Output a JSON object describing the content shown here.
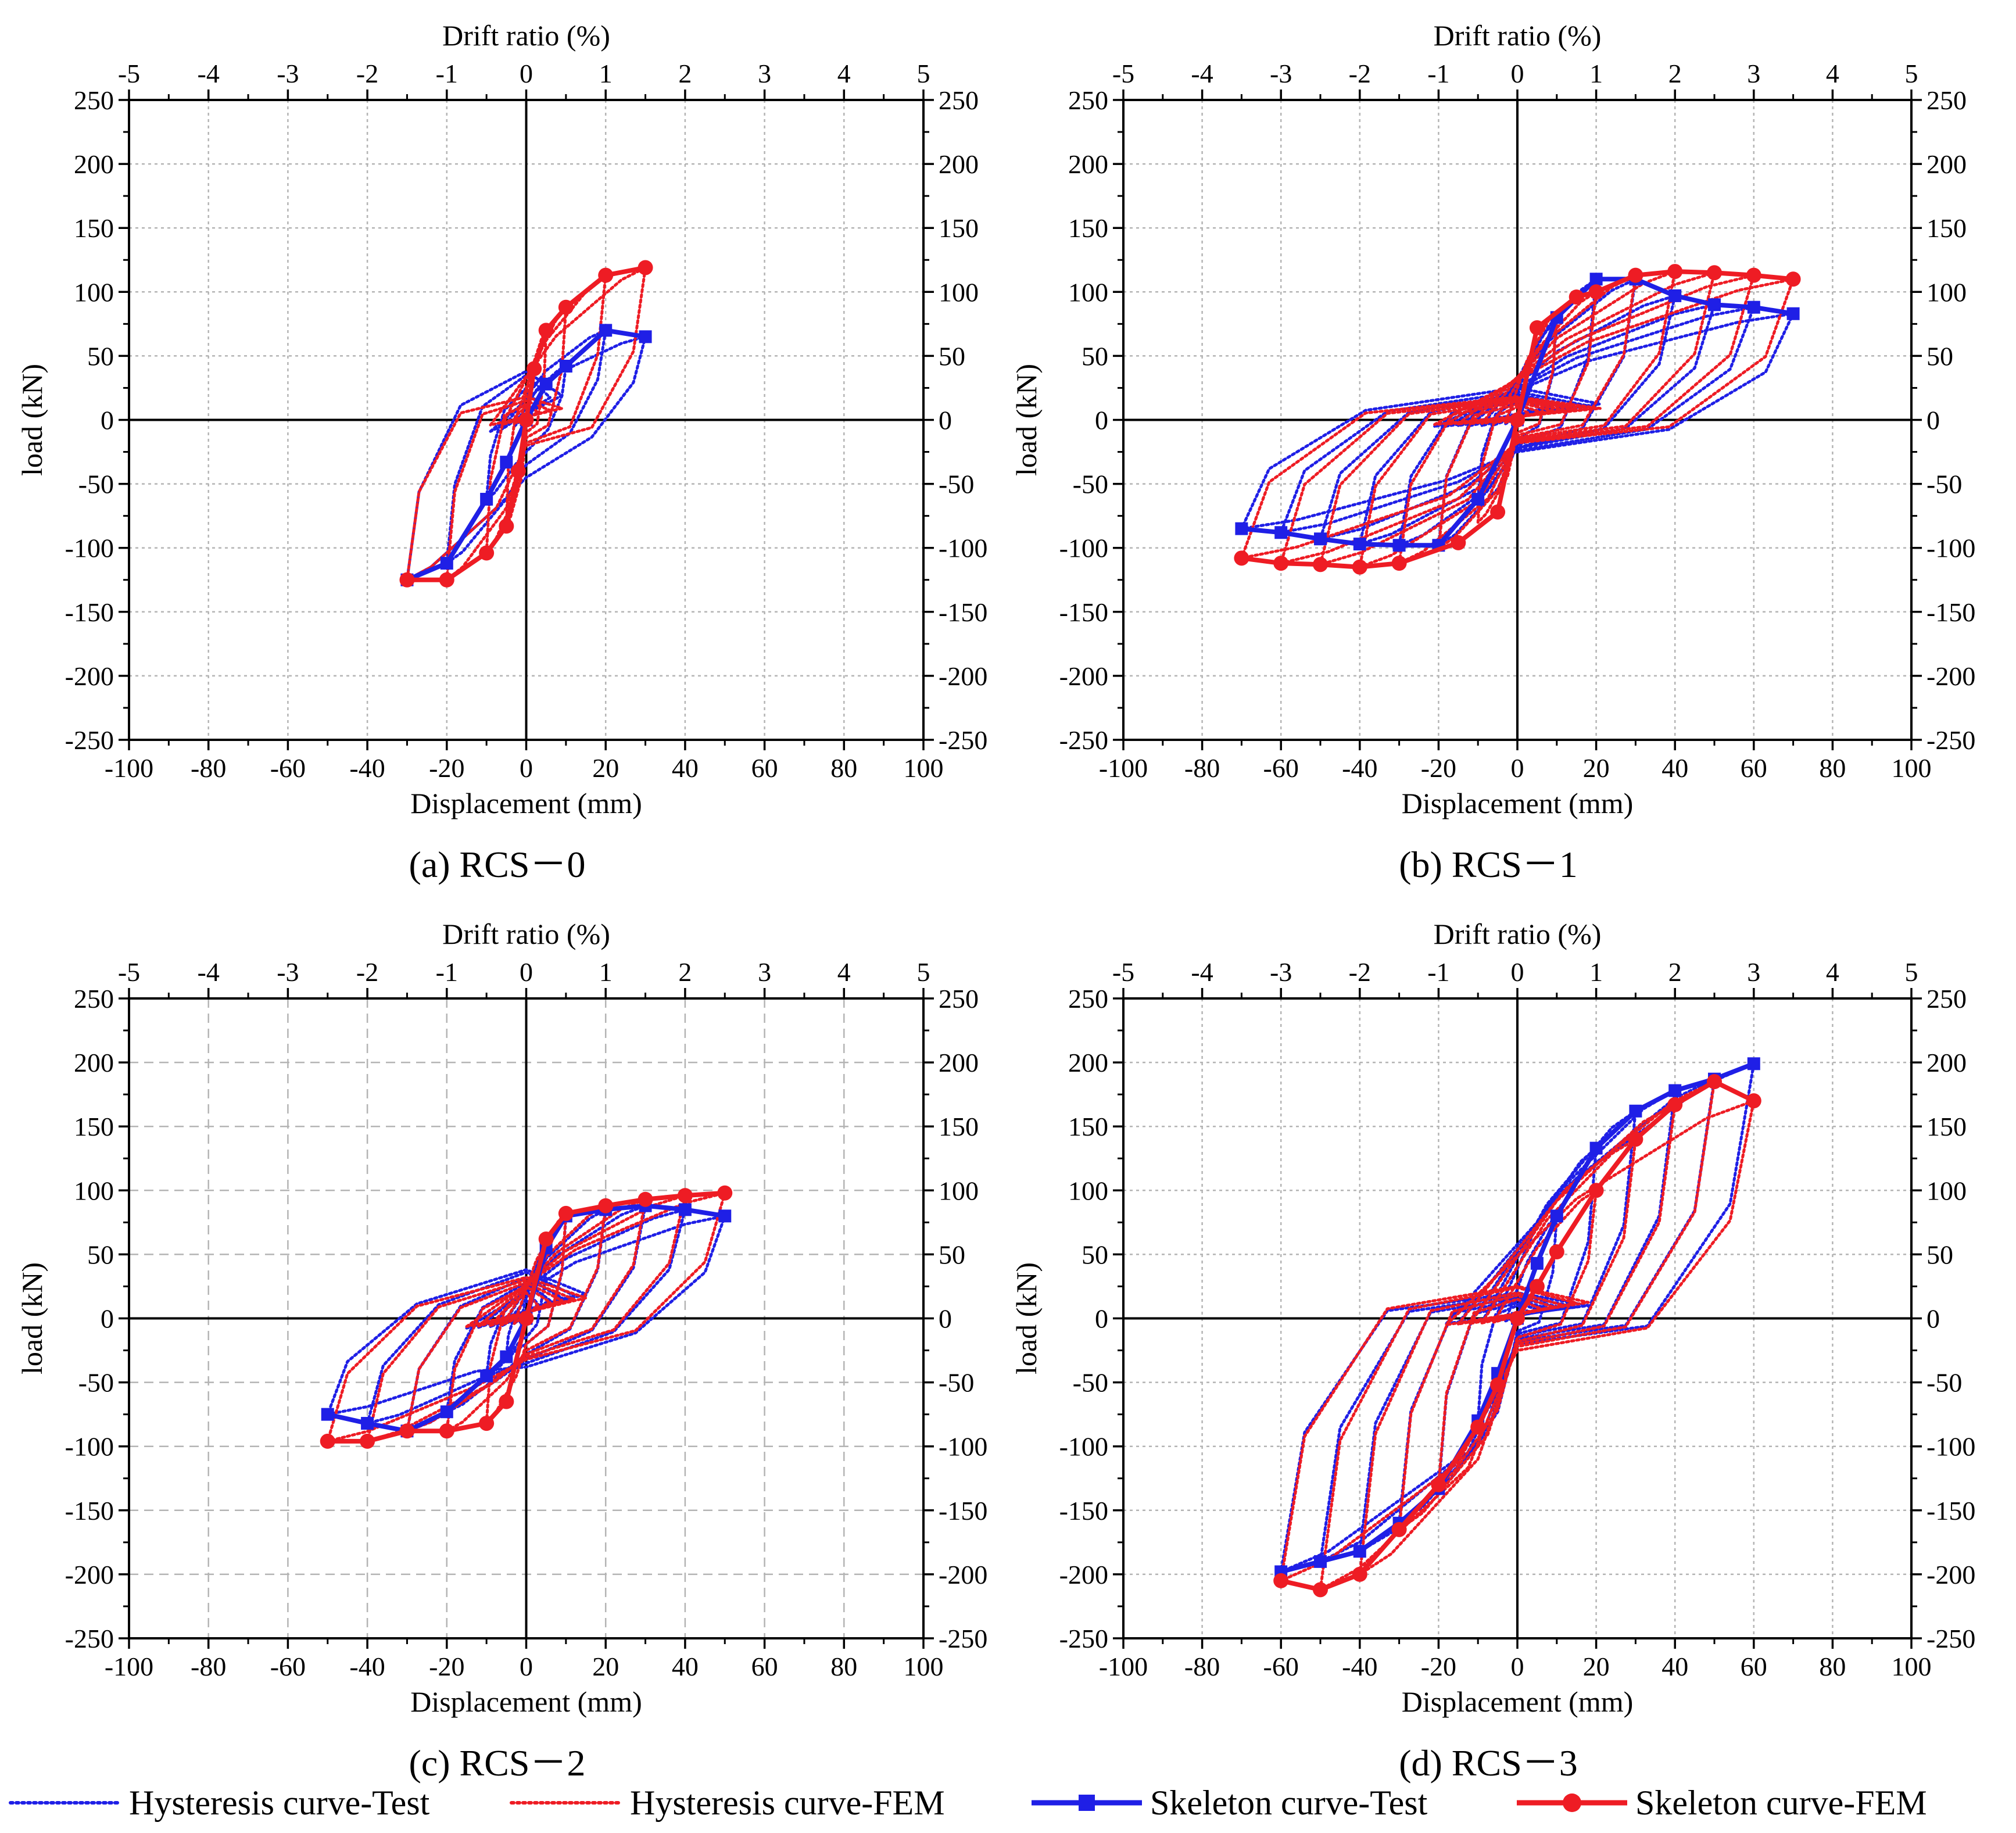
{
  "colors": {
    "test": "#1f1fe6",
    "fem": "#ee1c24",
    "grid": "#b4b4b4",
    "axis": "#000000"
  },
  "legend": [
    {
      "label": "Hysteresis curve-Test",
      "color": "#1f1fe6",
      "style": "dotted",
      "marker": "none"
    },
    {
      "label": "Hysteresis curve-FEM",
      "color": "#ee1c24",
      "style": "dotted",
      "marker": "none"
    },
    {
      "label": "Skeleton curve-Test",
      "color": "#1f1fe6",
      "style": "solid",
      "marker": "square"
    },
    {
      "label": "Skeleton curve-FEM",
      "color": "#ee1c24",
      "style": "solid",
      "marker": "circle"
    }
  ],
  "chart_data": [
    {
      "type": "line",
      "caption": "(a) RCS－0",
      "xlabel": "Displacement (mm)",
      "ylabel": "load (kN)",
      "x2label": "Drift ratio (%)",
      "xlim": [
        -100,
        100
      ],
      "ylim": [
        -250,
        250
      ],
      "x2lim": [
        -5,
        5
      ],
      "xticks": [
        -100,
        -80,
        -60,
        -40,
        -20,
        0,
        20,
        40,
        60,
        80,
        100
      ],
      "yticks": [
        -250,
        -200,
        -150,
        -100,
        -50,
        0,
        50,
        100,
        150,
        200,
        250
      ],
      "x2ticks": [
        -5,
        -4,
        -3,
        -2,
        -1,
        0,
        1,
        2,
        3,
        4,
        5
      ],
      "grid": true,
      "grid_style": "dotted",
      "series": [
        {
          "name": "Skeleton curve-Test",
          "x": [
            -30,
            -20,
            -10,
            -5,
            0,
            5,
            10,
            20,
            30
          ],
          "y": [
            -125,
            -112,
            -62,
            -33,
            0,
            28,
            42,
            70,
            65
          ]
        },
        {
          "name": "Skeleton curve-FEM",
          "x": [
            -30,
            -20,
            -10,
            -5,
            -2,
            0,
            2,
            5,
            10,
            20,
            30
          ],
          "y": [
            -125,
            -125,
            -104,
            -83,
            -40,
            0,
            40,
            70,
            88,
            113,
            119
          ]
        },
        {
          "name": "Hysteresis curve-Test",
          "loops": [
            {
              "amp": 10,
              "pos": 42,
              "neg": -62,
              "rpos": 25,
              "rneg": -25
            },
            {
              "amp": 20,
              "pos": 70,
              "neg": -112,
              "rpos": 35,
              "rneg": -35
            },
            {
              "amp": 30,
              "pos": 65,
              "neg": -125,
              "rpos": 38,
              "rneg": -45
            }
          ]
        },
        {
          "name": "Hysteresis curve-FEM",
          "loops": [
            {
              "amp": 5,
              "pos": 70,
              "neg": -83,
              "rpos": 10,
              "rneg": -10
            },
            {
              "amp": 10,
              "pos": 88,
              "neg": -104,
              "rpos": 12,
              "rneg": -14
            },
            {
              "amp": 20,
              "pos": 113,
              "neg": -125,
              "rpos": 15,
              "rneg": -18
            },
            {
              "amp": 30,
              "pos": 119,
              "neg": -125,
              "rpos": 18,
              "rneg": -20
            }
          ]
        }
      ]
    },
    {
      "type": "line",
      "caption": "(b) RCS－1",
      "xlabel": "Displacement (mm)",
      "ylabel": "load (kN)",
      "x2label": "Drift ratio (%)",
      "xlim": [
        -100,
        100
      ],
      "ylim": [
        -250,
        250
      ],
      "x2lim": [
        -5,
        5
      ],
      "xticks": [
        -100,
        -80,
        -60,
        -40,
        -20,
        0,
        20,
        40,
        60,
        80,
        100
      ],
      "yticks": [
        -250,
        -200,
        -150,
        -100,
        -50,
        0,
        50,
        100,
        150,
        200,
        250
      ],
      "x2ticks": [
        -5,
        -4,
        -3,
        -2,
        -1,
        0,
        1,
        2,
        3,
        4,
        5
      ],
      "grid": true,
      "grid_style": "dotted",
      "series": [
        {
          "name": "Skeleton curve-Test",
          "x": [
            -70,
            -60,
            -50,
            -40,
            -30,
            -20,
            -10,
            0,
            10,
            20,
            30,
            40,
            50,
            60,
            70
          ],
          "y": [
            -85,
            -88,
            -93,
            -97,
            -98,
            -98,
            -62,
            0,
            80,
            110,
            110,
            97,
            90,
            88,
            83
          ]
        },
        {
          "name": "Skeleton curve-FEM",
          "x": [
            -70,
            -60,
            -50,
            -40,
            -30,
            -15,
            -5,
            0,
            5,
            15,
            20,
            30,
            40,
            50,
            60,
            70
          ],
          "y": [
            -108,
            -112,
            -113,
            -115,
            -112,
            -96,
            -72,
            0,
            72,
            96,
            100,
            113,
            116,
            115,
            113,
            110
          ]
        },
        {
          "name": "Hysteresis curve-Test",
          "loops": [
            {
              "amp": 10,
              "pos": 80,
              "neg": -62,
              "rpos": 15,
              "rneg": -15
            },
            {
              "amp": 20,
              "pos": 110,
              "neg": -98,
              "rpos": 18,
              "rneg": -20
            },
            {
              "amp": 30,
              "pos": 110,
              "neg": -98,
              "rpos": 20,
              "rneg": -22
            },
            {
              "amp": 40,
              "pos": 97,
              "neg": -97,
              "rpos": 20,
              "rneg": -22
            },
            {
              "amp": 50,
              "pos": 90,
              "neg": -93,
              "rpos": 20,
              "rneg": -22
            },
            {
              "amp": 60,
              "pos": 88,
              "neg": -88,
              "rpos": 22,
              "rneg": -24
            },
            {
              "amp": 70,
              "pos": 83,
              "neg": -85,
              "rpos": 25,
              "rneg": -25
            }
          ]
        },
        {
          "name": "Hysteresis curve-FEM",
          "loops": [
            {
              "amp": 10,
              "pos": 85,
              "neg": -80,
              "rpos": 10,
              "rneg": -10
            },
            {
              "amp": 20,
              "pos": 100,
              "neg": -100,
              "rpos": 12,
              "rneg": -12
            },
            {
              "amp": 30,
              "pos": 113,
              "neg": -112,
              "rpos": 14,
              "rneg": -14
            },
            {
              "amp": 40,
              "pos": 116,
              "neg": -115,
              "rpos": 15,
              "rneg": -15
            },
            {
              "amp": 50,
              "pos": 115,
              "neg": -113,
              "rpos": 16,
              "rneg": -16
            },
            {
              "amp": 60,
              "pos": 113,
              "neg": -112,
              "rpos": 17,
              "rneg": -17
            },
            {
              "amp": 70,
              "pos": 110,
              "neg": -108,
              "rpos": 18,
              "rneg": -18
            }
          ]
        }
      ]
    },
    {
      "type": "line",
      "caption": "(c) RCS－2",
      "xlabel": "Displacement (mm)",
      "ylabel": "load (kN)",
      "x2label": "Drift ratio (%)",
      "xlim": [
        -100,
        100
      ],
      "ylim": [
        -250,
        250
      ],
      "x2lim": [
        -5,
        5
      ],
      "xticks": [
        -100,
        -80,
        -60,
        -40,
        -20,
        0,
        20,
        40,
        60,
        80,
        100
      ],
      "yticks": [
        -250,
        -200,
        -150,
        -100,
        -50,
        0,
        50,
        100,
        150,
        200,
        250
      ],
      "x2ticks": [
        -5,
        -4,
        -3,
        -2,
        -1,
        0,
        1,
        2,
        3,
        4,
        5
      ],
      "grid": true,
      "grid_style": "dashed",
      "series": [
        {
          "name": "Skeleton curve-Test",
          "x": [
            -50,
            -40,
            -30,
            -20,
            -10,
            -5,
            0,
            5,
            10,
            20,
            30,
            40,
            50
          ],
          "y": [
            -75,
            -82,
            -88,
            -73,
            -45,
            -30,
            0,
            55,
            80,
            85,
            88,
            85,
            80
          ]
        },
        {
          "name": "Skeleton curve-FEM",
          "x": [
            -50,
            -40,
            -30,
            -20,
            -10,
            -5,
            0,
            5,
            10,
            20,
            30,
            40,
            50
          ],
          "y": [
            -96,
            -96,
            -88,
            -88,
            -82,
            -65,
            0,
            62,
            82,
            88,
            93,
            96,
            98
          ]
        },
        {
          "name": "Hysteresis curve-Test",
          "loops": [
            {
              "amp": 5,
              "pos": 55,
              "neg": -30,
              "rpos": 15,
              "rneg": -15
            },
            {
              "amp": 10,
              "pos": 80,
              "neg": -45,
              "rpos": 22,
              "rneg": -20
            },
            {
              "amp": 20,
              "pos": 85,
              "neg": -73,
              "rpos": 28,
              "rneg": -28
            },
            {
              "amp": 30,
              "pos": 88,
              "neg": -88,
              "rpos": 32,
              "rneg": -32
            },
            {
              "amp": 40,
              "pos": 85,
              "neg": -82,
              "rpos": 36,
              "rneg": -35
            },
            {
              "amp": 50,
              "pos": 80,
              "neg": -75,
              "rpos": 38,
              "rneg": -38
            }
          ]
        },
        {
          "name": "Hysteresis curve-FEM",
          "loops": [
            {
              "amp": 10,
              "pos": 82,
              "neg": -82,
              "rpos": 20,
              "rneg": -20
            },
            {
              "amp": 20,
              "pos": 88,
              "neg": -88,
              "rpos": 25,
              "rneg": -25
            },
            {
              "amp": 30,
              "pos": 93,
              "neg": -88,
              "rpos": 28,
              "rneg": -28
            },
            {
              "amp": 40,
              "pos": 96,
              "neg": -96,
              "rpos": 30,
              "rneg": -30
            },
            {
              "amp": 50,
              "pos": 98,
              "neg": -96,
              "rpos": 32,
              "rneg": -32
            }
          ]
        }
      ]
    },
    {
      "type": "line",
      "caption": "(d) RCS－3",
      "xlabel": "Displacement (mm)",
      "ylabel": "load (kN)",
      "x2label": "Drift ratio (%)",
      "xlim": [
        -100,
        100
      ],
      "ylim": [
        -250,
        250
      ],
      "x2lim": [
        -5,
        5
      ],
      "xticks": [
        -100,
        -80,
        -60,
        -40,
        -20,
        0,
        20,
        40,
        60,
        80,
        100
      ],
      "yticks": [
        -250,
        -200,
        -150,
        -100,
        -50,
        0,
        50,
        100,
        150,
        200,
        250
      ],
      "x2ticks": [
        -5,
        -4,
        -3,
        -2,
        -1,
        0,
        1,
        2,
        3,
        4,
        5
      ],
      "grid": true,
      "grid_style": "dotted",
      "series": [
        {
          "name": "Skeleton curve-Test",
          "x": [
            -60,
            -50,
            -40,
            -30,
            -20,
            -10,
            -5,
            0,
            5,
            10,
            20,
            30,
            40,
            50,
            60
          ],
          "y": [
            -198,
            -190,
            -182,
            -160,
            -133,
            -80,
            -43,
            0,
            43,
            80,
            133,
            162,
            178,
            187,
            199
          ]
        },
        {
          "name": "Skeleton curve-FEM",
          "x": [
            -60,
            -50,
            -40,
            -30,
            -20,
            -10,
            -5,
            0,
            5,
            10,
            20,
            30,
            40,
            50,
            60
          ],
          "y": [
            -205,
            -212,
            -200,
            -165,
            -130,
            -85,
            -52,
            0,
            25,
            52,
            100,
            140,
            167,
            185,
            170
          ]
        },
        {
          "name": "Hysteresis curve-Test",
          "loops": [
            {
              "amp": 10,
              "pos": 80,
              "neg": -80,
              "rpos": 10,
              "rneg": -10
            },
            {
              "amp": 20,
              "pos": 133,
              "neg": -133,
              "rpos": 12,
              "rneg": -12
            },
            {
              "amp": 30,
              "pos": 162,
              "neg": -160,
              "rpos": 14,
              "rneg": -14
            },
            {
              "amp": 40,
              "pos": 178,
              "neg": -182,
              "rpos": 16,
              "rneg": -16
            },
            {
              "amp": 50,
              "pos": 187,
              "neg": -190,
              "rpos": 18,
              "rneg": -18
            },
            {
              "amp": 60,
              "pos": 199,
              "neg": -198,
              "rpos": 20,
              "rneg": -20
            }
          ]
        },
        {
          "name": "Hysteresis curve-FEM",
          "loops": [
            {
              "amp": 20,
              "pos": 100,
              "neg": -130,
              "rpos": 15,
              "rneg": -15
            },
            {
              "amp": 30,
              "pos": 140,
              "neg": -165,
              "rpos": 18,
              "rneg": -18
            },
            {
              "amp": 40,
              "pos": 167,
              "neg": -200,
              "rpos": 20,
              "rneg": -20
            },
            {
              "amp": 50,
              "pos": 185,
              "neg": -212,
              "rpos": 24,
              "rneg": -22
            },
            {
              "amp": 60,
              "pos": 170,
              "neg": -205,
              "rpos": 25,
              "rneg": -25
            }
          ]
        }
      ]
    }
  ]
}
